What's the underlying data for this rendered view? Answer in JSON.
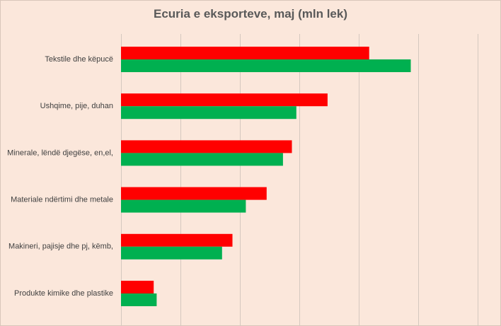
{
  "chart_data": {
    "type": "bar",
    "orientation": "horizontal",
    "title": "Ecuria e eksporteve, maj (mln lek)",
    "categories": [
      "Tekstile dhe këpucë",
      "Ushqime, pije, duhan",
      "Minerale, lëndë djegëse, en,el,",
      "Materiale ndërtimi dhe metale",
      "Makineri, pajisje dhe pj, këmb,",
      "Produkte kimike dhe plastike"
    ],
    "series": [
      {
        "values": [
          8350,
          6950,
          5750,
          4900,
          3750,
          1100
        ],
        "color": "#ff0000"
      },
      {
        "values": [
          9750,
          5900,
          5450,
          4200,
          3400,
          1200
        ],
        "color": "#00b050"
      }
    ],
    "xlim": [
      0,
      12000
    ],
    "x_gridlines": [
      0,
      2000,
      4000,
      6000,
      8000,
      10000,
      12000
    ],
    "tick_labels_visible": false,
    "legend": "none",
    "grid": true
  }
}
